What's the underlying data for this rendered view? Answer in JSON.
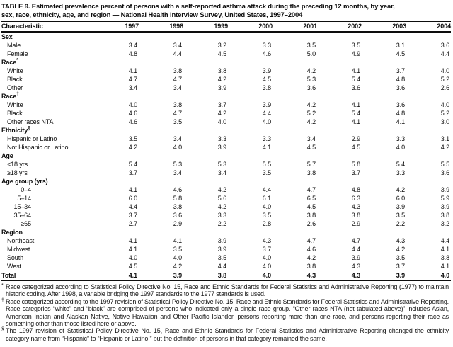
{
  "title_lines": [
    "TABLE 9. Estimated prevalence percent of persons with a self-reported asthma attack during the preceding 12 months, by year,",
    "sex, race, ethnicity, age, and region — National Health Interview Survey, United States, 1997–2004"
  ],
  "columns": {
    "characteristic": "Characteristic",
    "years": [
      "1997",
      "1998",
      "1999",
      "2000",
      "2001",
      "2002",
      "2003",
      "2004"
    ]
  },
  "rows": [
    {
      "type": "group",
      "label": "Sex"
    },
    {
      "type": "item",
      "label": "Male",
      "values": [
        "3.4",
        "3.4",
        "3.2",
        "3.3",
        "3.5",
        "3.5",
        "3.1",
        "3.6"
      ]
    },
    {
      "type": "item",
      "label": "Female",
      "values": [
        "4.8",
        "4.4",
        "4.5",
        "4.6",
        "5.0",
        "4.9",
        "4.5",
        "4.4"
      ]
    },
    {
      "type": "group",
      "label": "Race",
      "sup": "*"
    },
    {
      "type": "item",
      "label": "White",
      "values": [
        "4.1",
        "3.8",
        "3.8",
        "3.9",
        "4.2",
        "4.1",
        "3.7",
        "4.0"
      ]
    },
    {
      "type": "item",
      "label": "Black",
      "values": [
        "4.7",
        "4.7",
        "4.2",
        "4.5",
        "5.3",
        "5.4",
        "4.8",
        "5.2"
      ]
    },
    {
      "type": "item",
      "label": "Other",
      "values": [
        "3.4",
        "3.4",
        "3.9",
        "3.8",
        "3.6",
        "3.6",
        "3.6",
        "2.6"
      ]
    },
    {
      "type": "group",
      "label": "Race",
      "sup": "†"
    },
    {
      "type": "item",
      "label": "White",
      "values": [
        "4.0",
        "3.8",
        "3.7",
        "3.9",
        "4.2",
        "4.1",
        "3.6",
        "4.0"
      ]
    },
    {
      "type": "item",
      "label": "Black",
      "values": [
        "4.6",
        "4.7",
        "4.2",
        "4.4",
        "5.2",
        "5.4",
        "4.8",
        "5.2"
      ]
    },
    {
      "type": "item",
      "label": "Other races NTA",
      "values": [
        "4.6",
        "3.5",
        "4.0",
        "4.0",
        "4.2",
        "4.1",
        "4.1",
        "3.0"
      ]
    },
    {
      "type": "group",
      "label": "Ethnicity",
      "sup": "§"
    },
    {
      "type": "item",
      "label": "Hispanic or Latino",
      "values": [
        "3.5",
        "3.4",
        "3.3",
        "3.3",
        "3.4",
        "2.9",
        "3.3",
        "3.1"
      ]
    },
    {
      "type": "item",
      "label": "Not Hispanic or Latino",
      "values": [
        "4.2",
        "4.0",
        "3.9",
        "4.1",
        "4.5",
        "4.5",
        "4.0",
        "4.2"
      ]
    },
    {
      "type": "group",
      "label": "Age"
    },
    {
      "type": "item",
      "label": "<18 yrs",
      "values": [
        "5.4",
        "5.3",
        "5.3",
        "5.5",
        "5.7",
        "5.8",
        "5.4",
        "5.5"
      ]
    },
    {
      "type": "item",
      "label": "≥18 yrs",
      "values": [
        "3.7",
        "3.4",
        "3.4",
        "3.5",
        "3.8",
        "3.7",
        "3.3",
        "3.6"
      ]
    },
    {
      "type": "group",
      "label": "Age group (yrs)"
    },
    {
      "type": "item-num",
      "label": "0–4",
      "values": [
        "4.1",
        "4.6",
        "4.2",
        "4.4",
        "4.7",
        "4.8",
        "4.2",
        "3.9"
      ]
    },
    {
      "type": "item-num",
      "label": "5–14",
      "values": [
        "6.0",
        "5.8",
        "5.6",
        "6.1",
        "6.5",
        "6.3",
        "6.0",
        "5.9"
      ]
    },
    {
      "type": "item-num",
      "label": "15–34",
      "values": [
        "4.4",
        "3.8",
        "4.2",
        "4.0",
        "4.5",
        "4.3",
        "3.9",
        "3.9"
      ]
    },
    {
      "type": "item-num",
      "label": "35–64",
      "values": [
        "3.7",
        "3.6",
        "3.3",
        "3.5",
        "3.8",
        "3.8",
        "3.5",
        "3.8"
      ]
    },
    {
      "type": "item-num",
      "label": "≥65",
      "values": [
        "2.7",
        "2.9",
        "2.2",
        "2.8",
        "2.6",
        "2.9",
        "2.2",
        "3.2"
      ]
    },
    {
      "type": "group",
      "label": "Region"
    },
    {
      "type": "item",
      "label": "Northeast",
      "values": [
        "4.1",
        "4.1",
        "3.9",
        "4.3",
        "4.7",
        "4.7",
        "4.3",
        "4.4"
      ]
    },
    {
      "type": "item",
      "label": "Midwest",
      "values": [
        "4.1",
        "3.5",
        "3.9",
        "3.7",
        "4.6",
        "4.4",
        "4.2",
        "4.1"
      ]
    },
    {
      "type": "item",
      "label": "South",
      "values": [
        "4.0",
        "4.0",
        "3.5",
        "4.0",
        "4.2",
        "3.9",
        "3.5",
        "3.8"
      ]
    },
    {
      "type": "item",
      "label": "West",
      "values": [
        "4.5",
        "4.2",
        "4.4",
        "4.0",
        "3.8",
        "4.3",
        "3.7",
        "4.1"
      ]
    },
    {
      "type": "total",
      "label": "Total",
      "values": [
        "4.1",
        "3.9",
        "3.8",
        "4.0",
        "4.3",
        "4.3",
        "3.9",
        "4.0"
      ]
    }
  ],
  "footnotes": [
    {
      "marker": "*",
      "text": "Race categorized according to Statistical Policy Directive No. 15, Race and Ethnic Standards for Federal Statistics and Administrative Reporting (1977) to maintain historic coding. After 1998, a variable bridging the 1997 standards to the 1977 standards is used."
    },
    {
      "marker": "†",
      "text": "Race categorized according to the 1997 revision of Statistical Policy Directive No. 15, Race and Ethnic Standards for Federal Statistics and Administrative Reporting. Race categories “white” and “black” are comprised of persons who indicated only a single race group. “Other races NTA (not tabulated above)” includes Asian, American Indian and Alaskan Native, Native Hawaiian and Other Pacific Islander, persons reporting more than one race, and persons reporting their race as something other than those listed here or above."
    },
    {
      "marker": "§",
      "text": "The 1997 revision of Statistical Policy Directive No. 15, Race and Ethnic Standards for Federal Statistics and Administrative Reporting changed the ethnicity category name from “Hispanic” to “Hispanic or Latino,” but the definition of persons in that category remained the same."
    }
  ]
}
